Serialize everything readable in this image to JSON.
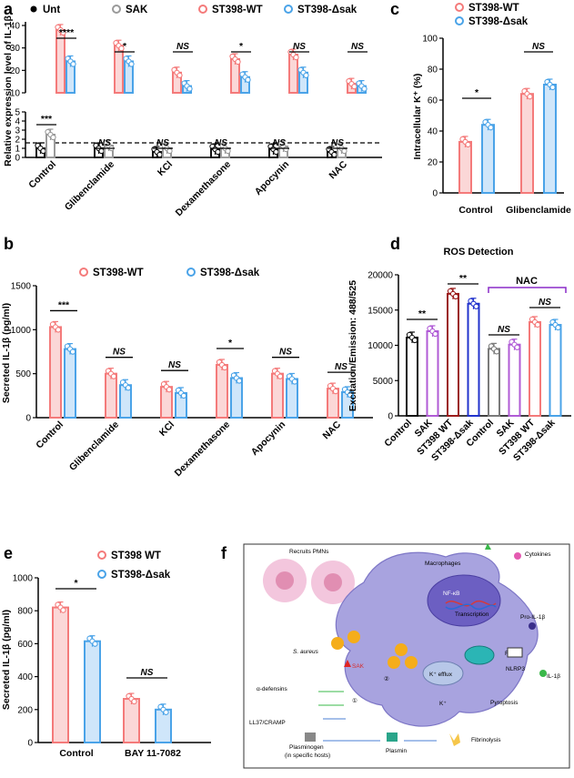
{
  "colors": {
    "wt": "#f47a7a",
    "sak": "#4aa3e8",
    "unt": "#111111",
    "sakc": "#9a9a9a",
    "wt_fill": "#fbd7d7",
    "sak_fill": "#cfe6fa",
    "dark_red": "#9b1b1b",
    "blue_d": "#2233cc",
    "purple": "#b05bd6",
    "nac": "#8a2bc8",
    "gray_d": "#7a7a7a"
  },
  "chart_data": [
    {
      "panel": "a",
      "type": "bar",
      "ylabel": "Relative expression level of IL-1β",
      "legend": [
        "Unt",
        "SAK",
        "ST398-WT",
        "ST398-Δsak"
      ],
      "categories": [
        "Control",
        "Glibenclamide",
        "KCl",
        "Dexamethasone",
        "Apocynin",
        "NAC"
      ],
      "series": [
        {
          "name": "Unt",
          "values": [
            1,
            1,
            0.6,
            0.9,
            0.9,
            0.6
          ]
        },
        {
          "name": "SAK",
          "values": [
            2.5,
            1.3,
            1,
            1,
            1.2,
            1
          ]
        },
        {
          "name": "ST398-WT",
          "values": [
            38,
            31,
            19,
            25,
            27,
            14
          ]
        },
        {
          "name": "ST398-Δsak",
          "values": [
            24,
            24,
            13,
            17,
            19,
            13
          ]
        }
      ],
      "ylim_lower": [
        0,
        5
      ],
      "ylim_upper": [
        10,
        40
      ],
      "significance": [
        "***",
        "****",
        "NS",
        "*",
        "NS",
        "NS",
        "NS",
        "*",
        "NS",
        "NS",
        "NS",
        "NS"
      ]
    },
    {
      "panel": "b",
      "type": "bar",
      "ylabel": "Secreted IL-1β (pg/ml)",
      "legend": [
        "ST398-WT",
        "ST398-Δsak"
      ],
      "categories": [
        "Control",
        "Glibenclamide",
        "KCl",
        "Dexamethasone",
        "Apocynin",
        "NAC"
      ],
      "series": [
        {
          "name": "ST398-WT",
          "values": [
            1030,
            500,
            350,
            600,
            500,
            330
          ]
        },
        {
          "name": "ST398-Δsak",
          "values": [
            780,
            370,
            280,
            450,
            440,
            290
          ]
        }
      ],
      "ylim": [
        0,
        1500
      ],
      "significance": [
        "***",
        "NS",
        "NS",
        "*",
        "NS",
        "NS"
      ]
    },
    {
      "panel": "c",
      "type": "bar",
      "ylabel": "Intracellular K⁺ (%)",
      "legend": [
        "ST398-WT",
        "ST398-Δsak"
      ],
      "categories": [
        "Control",
        "Glibenclamide"
      ],
      "series": [
        {
          "name": "ST398-WT",
          "values": [
            33,
            64
          ]
        },
        {
          "name": "ST398-Δsak",
          "values": [
            44,
            70
          ]
        }
      ],
      "ylim": [
        0,
        100
      ],
      "significance": [
        "*",
        "NS"
      ]
    },
    {
      "panel": "d",
      "type": "bar",
      "title": "ROS Detection",
      "ylabel": "Excitation/Emission: 488/525",
      "categories": [
        "Control",
        "SAK",
        "ST398 WT",
        "ST398-Δsak",
        "Control",
        "SAK",
        "ST398 WT",
        "ST398-Δsak"
      ],
      "values": [
        11100,
        12000,
        17300,
        15900,
        9500,
        10100,
        13300,
        12900
      ],
      "group_label": "NAC",
      "ylim": [
        0,
        20000
      ],
      "significance": [
        "**",
        "**",
        "NS",
        "NS"
      ]
    },
    {
      "panel": "e",
      "type": "bar",
      "ylabel": "Secreted IL-1β (pg/ml)",
      "legend": [
        "ST398 WT",
        "ST398-Δsak"
      ],
      "categories": [
        "Control",
        "BAY 11-7082"
      ],
      "series": [
        {
          "name": "ST398 WT",
          "values": [
            820,
            265
          ]
        },
        {
          "name": "ST398-Δsak",
          "values": [
            615,
            200
          ]
        }
      ],
      "ylim": [
        0,
        1000
      ],
      "significance": [
        "*",
        "NS"
      ]
    }
  ],
  "panels": {
    "a": "a",
    "b": "b",
    "c": "c",
    "d": "d",
    "e": "e",
    "f": "f"
  },
  "diagram": {
    "recruits": "Recruits PMNs",
    "macrophages": "Macrophages",
    "cytokines": "Cytokines",
    "nfkb": "NF-κB",
    "transcription": "Transcription",
    "pro_il1b": "Pro-IL-1β",
    "nlrp3": "NLRP3",
    "il1b": "IL-1β",
    "ros": "ROS",
    "kefflux": "K⁺ efflux",
    "k": "K⁺",
    "pyroptosis": "Pyroptosis",
    "saureus": "S. aureus",
    "sak": "SAK",
    "circ2": "②",
    "circ1": "①",
    "defensins": "α-defensins",
    "ll37": "LL37/CRAMP",
    "plasminogen": "Plasminogen",
    "hosts": "(in specific hosts)",
    "plasmin": "Plasmin",
    "fibrinolysis": "Fibrinolysis"
  }
}
